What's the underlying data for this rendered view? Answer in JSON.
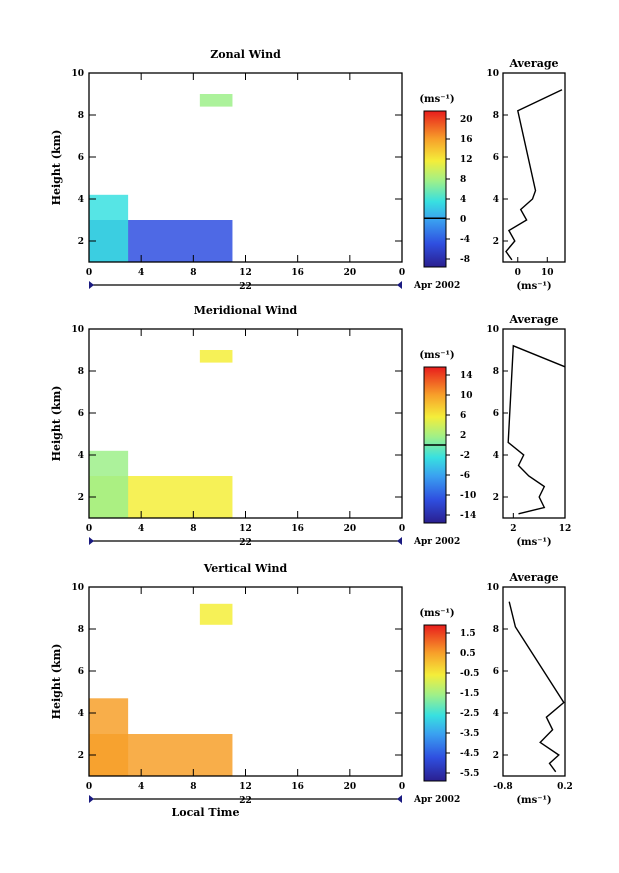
{
  "figure": {
    "ylabel": "Height (km)",
    "xlabel": "Local Time",
    "date_label": "22",
    "month_label": "Apr 2002",
    "unit_label": "(ms⁻¹)"
  },
  "chart_data": [
    {
      "type": "heatmap",
      "title": "Zonal Wind",
      "xlabel": "Local Time",
      "ylabel": "Height (km)",
      "xlim": [
        0,
        24
      ],
      "ylim": [
        1,
        10
      ],
      "xticks": [
        "0",
        "4",
        "8",
        "12",
        "16",
        "20",
        "0"
      ],
      "yticks": [
        "2",
        "4",
        "6",
        "8",
        "10"
      ],
      "colorbar": {
        "unit": "(ms⁻¹)",
        "range": [
          -10,
          22
        ],
        "ticks": [
          "20",
          "16",
          "12",
          "8",
          "4",
          "0",
          "-4",
          "-8"
        ],
        "contour_at": 0
      },
      "coverage": [
        {
          "x": [
            0,
            11
          ],
          "y": [
            1,
            3
          ],
          "value": -6
        },
        {
          "x": [
            0,
            3
          ],
          "y": [
            1,
            4.2
          ],
          "value": 2
        },
        {
          "x": [
            8.5,
            11
          ],
          "y": [
            8.4,
            9
          ],
          "value": 6
        }
      ],
      "average_profile": {
        "title": "Average",
        "xlabel": "(ms⁻¹)",
        "xticks": [
          "0",
          "10"
        ],
        "xlim": [
          -5,
          16
        ],
        "points": [
          [
            -2,
            1.1
          ],
          [
            -4,
            1.5
          ],
          [
            -1,
            2
          ],
          [
            -3,
            2.5
          ],
          [
            3,
            3
          ],
          [
            1,
            3.5
          ],
          [
            5,
            4
          ],
          [
            6,
            4.4
          ],
          [
            0,
            8.2
          ],
          [
            15,
            9.2
          ]
        ]
      }
    },
    {
      "type": "heatmap",
      "title": "Meridional Wind",
      "xlabel": "Local Time",
      "ylabel": "Height (km)",
      "xlim": [
        0,
        24
      ],
      "ylim": [
        1,
        10
      ],
      "xticks": [
        "0",
        "4",
        "8",
        "12",
        "16",
        "20",
        "0"
      ],
      "yticks": [
        "2",
        "4",
        "6",
        "8",
        "10"
      ],
      "colorbar": {
        "unit": "(ms⁻¹)",
        "range": [
          -16,
          16
        ],
        "ticks": [
          "14",
          "10",
          "6",
          "2",
          "-2",
          "-6",
          "-10",
          "-14"
        ],
        "contour_at": 0
      },
      "coverage": [
        {
          "x": [
            0,
            11
          ],
          "y": [
            1,
            3
          ],
          "value": 6
        },
        {
          "x": [
            0,
            3
          ],
          "y": [
            1,
            4.2
          ],
          "value": 3
        },
        {
          "x": [
            8.5,
            11
          ],
          "y": [
            8.4,
            9
          ],
          "value": 6
        }
      ],
      "average_profile": {
        "title": "Average",
        "xlabel": "(ms⁻¹)",
        "xticks": [
          "2",
          "12"
        ],
        "xlim": [
          0,
          12
        ],
        "points": [
          [
            3,
            1.2
          ],
          [
            8,
            1.5
          ],
          [
            7,
            2
          ],
          [
            8,
            2.5
          ],
          [
            5,
            3
          ],
          [
            3,
            3.5
          ],
          [
            4,
            4
          ],
          [
            1,
            4.6
          ],
          [
            2,
            9.2
          ],
          [
            12,
            8.2
          ]
        ]
      }
    },
    {
      "type": "heatmap",
      "title": "Vertical Wind",
      "xlabel": "Local Time",
      "ylabel": "Height (km)",
      "xlim": [
        0,
        24
      ],
      "ylim": [
        1,
        10
      ],
      "xticks": [
        "0",
        "4",
        "8",
        "12",
        "16",
        "20",
        "0"
      ],
      "yticks": [
        "2",
        "4",
        "6",
        "8",
        "10"
      ],
      "colorbar": {
        "unit": "(ms⁻¹)",
        "range": [
          -6.5,
          2
        ],
        "ticks": [
          "1.5",
          "0.5",
          "-0.5",
          "-1.5",
          "-2.5",
          "-3.5",
          "-4.5",
          "-5.5"
        ],
        "contour_at": null
      },
      "coverage": [
        {
          "x": [
            0,
            11
          ],
          "y": [
            1,
            3
          ],
          "value": 0.3
        },
        {
          "x": [
            0,
            3
          ],
          "y": [
            1,
            4.7
          ],
          "value": 0.3
        },
        {
          "x": [
            8.5,
            11
          ],
          "y": [
            8.2,
            9.2
          ],
          "value": -0.7
        }
      ],
      "average_profile": {
        "title": "Average",
        "xlabel": "(ms⁻¹)",
        "xticks": [
          "-0.8",
          "0.2"
        ],
        "xlim": [
          -0.8,
          0.2
        ],
        "points": [
          [
            0.05,
            1.2
          ],
          [
            -0.05,
            1.6
          ],
          [
            0.1,
            2
          ],
          [
            -0.2,
            2.6
          ],
          [
            0,
            3.2
          ],
          [
            -0.1,
            3.8
          ],
          [
            0.18,
            4.5
          ],
          [
            -0.6,
            8.1
          ],
          [
            -0.7,
            9.3
          ]
        ]
      }
    }
  ]
}
